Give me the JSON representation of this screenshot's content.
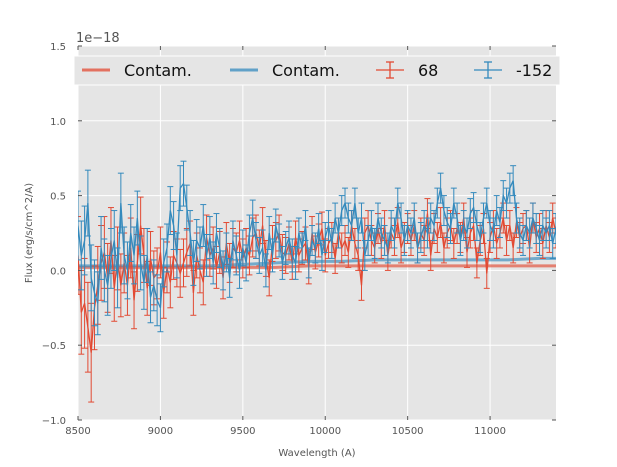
{
  "chart_data": {
    "type": "line",
    "title": "",
    "xlabel": "Wavelength (A)",
    "ylabel": "Flux (erg/s/cm^2/A)",
    "y_offset_label": "1e−18",
    "xlim": [
      8500,
      11400
    ],
    "ylim": [
      -1.0,
      1.5
    ],
    "xticks": [
      8500,
      9000,
      9500,
      10000,
      10500,
      11000
    ],
    "yticks": [
      -1.0,
      -0.5,
      0.0,
      0.5,
      1.0,
      1.5
    ],
    "xtick_labels": [
      "8500",
      "9000",
      "9500",
      "10000",
      "10500",
      "11000"
    ],
    "ytick_labels": [
      "−1.0",
      "−0.5",
      "0.0",
      "0.5",
      "1.0",
      "1.5"
    ],
    "grid": true,
    "legend_position": "top",
    "colors": {
      "red": "#e24a33",
      "blue": "#348abd",
      "background": "#e5e5e5",
      "grid": "#ffffff"
    },
    "legend": [
      {
        "label": "Contam.",
        "kind": "line",
        "color": "#e24a33"
      },
      {
        "label": "Contam.",
        "kind": "line",
        "color": "#348abd"
      },
      {
        "label": "68",
        "kind": "errorbar",
        "color": "#e24a33"
      },
      {
        "label": "-152",
        "kind": "errorbar",
        "color": "#348abd"
      }
    ],
    "x": [
      8500,
      8520,
      8540,
      8560,
      8580,
      8600,
      8620,
      8640,
      8660,
      8680,
      8700,
      8720,
      8740,
      8760,
      8780,
      8800,
      8820,
      8840,
      8860,
      8880,
      8900,
      8920,
      8940,
      8960,
      8980,
      9000,
      9020,
      9040,
      9060,
      9080,
      9100,
      9120,
      9140,
      9160,
      9180,
      9200,
      9220,
      9240,
      9260,
      9280,
      9300,
      9320,
      9340,
      9360,
      9380,
      9400,
      9420,
      9440,
      9460,
      9480,
      9500,
      9520,
      9540,
      9560,
      9580,
      9600,
      9620,
      9640,
      9660,
      9680,
      9700,
      9720,
      9740,
      9760,
      9780,
      9800,
      9820,
      9840,
      9860,
      9880,
      9900,
      9920,
      9940,
      9960,
      9980,
      10000,
      10020,
      10040,
      10060,
      10080,
      10100,
      10120,
      10140,
      10160,
      10180,
      10200,
      10220,
      10240,
      10260,
      10280,
      10300,
      10320,
      10340,
      10360,
      10380,
      10400,
      10420,
      10440,
      10460,
      10480,
      10500,
      10520,
      10540,
      10560,
      10580,
      10600,
      10620,
      10640,
      10660,
      10680,
      10700,
      10720,
      10740,
      10760,
      10780,
      10800,
      10820,
      10840,
      10860,
      10880,
      10900,
      10920,
      10940,
      10960,
      10980,
      11000,
      11020,
      11040,
      11060,
      11080,
      11100,
      11120,
      11140,
      11160,
      11180,
      11200,
      11220,
      11240,
      11260,
      11280,
      11300,
      11320,
      11340,
      11360,
      11380,
      11400
    ],
    "series": [
      {
        "name": "68",
        "kind": "errorbar",
        "color": "#e24a33",
        "y": [
          0.1,
          -0.28,
          -0.22,
          -0.38,
          -0.55,
          -0.25,
          -0.1,
          0.05,
          0.12,
          -0.05,
          0.2,
          -0.12,
          0.08,
          -0.1,
          0.05,
          -0.1,
          0.15,
          -0.2,
          0.05,
          0.3,
          0.1,
          -0.12,
          0.08,
          -0.05,
          -0.02,
          0.12,
          -0.15,
          0.02,
          -0.08,
          0.1,
          0.05,
          -0.02,
          0.05,
          0.12,
          0.18,
          -0.15,
          0.1,
          0.0,
          -0.08,
          0.22,
          0.1,
          0.15,
          0.02,
          0.12,
          -0.05,
          0.18,
          0.05,
          0.15,
          0.12,
          0.2,
          0.08,
          0.15,
          0.1,
          0.22,
          0.25,
          0.15,
          0.3,
          0.08,
          -0.05,
          0.18,
          0.2,
          0.25,
          0.12,
          0.1,
          0.18,
          0.05,
          0.22,
          0.1,
          0.15,
          0.18,
          0.02,
          0.25,
          0.12,
          0.2,
          0.28,
          0.1,
          0.18,
          0.22,
          0.08,
          0.25,
          0.15,
          0.2,
          0.12,
          0.3,
          0.18,
          0.1,
          -0.1,
          0.25,
          0.3,
          0.2,
          0.15,
          0.28,
          0.18,
          0.3,
          0.1,
          0.25,
          0.2,
          0.32,
          0.15,
          0.22,
          0.28,
          0.2,
          0.3,
          0.15,
          0.25,
          0.2,
          0.38,
          0.1,
          0.28,
          0.22,
          0.32,
          0.15,
          0.25,
          0.3,
          0.18,
          0.28,
          0.22,
          0.35,
          0.12,
          0.25,
          0.3,
          0.05,
          0.2,
          0.28,
          -0.02,
          0.22,
          0.3,
          0.18,
          0.25,
          0.35,
          0.2,
          0.3,
          0.15,
          0.32,
          0.22,
          0.28,
          0.3,
          0.15,
          0.35,
          0.22,
          0.28,
          0.18,
          0.3,
          0.22,
          0.35,
          0.25
        ],
        "err": [
          0.26,
          0.28,
          0.3,
          0.3,
          0.33,
          0.28,
          0.26,
          0.25,
          0.24,
          0.23,
          0.22,
          0.22,
          0.21,
          0.21,
          0.2,
          0.2,
          0.2,
          0.19,
          0.19,
          0.19,
          0.18,
          0.18,
          0.18,
          0.18,
          0.17,
          0.17,
          0.17,
          0.17,
          0.17,
          0.16,
          0.16,
          0.16,
          0.16,
          0.16,
          0.15,
          0.15,
          0.15,
          0.15,
          0.15,
          0.15,
          0.14,
          0.14,
          0.14,
          0.14,
          0.14,
          0.14,
          0.13,
          0.13,
          0.13,
          0.13,
          0.13,
          0.13,
          0.13,
          0.13,
          0.12,
          0.12,
          0.12,
          0.12,
          0.12,
          0.12,
          0.12,
          0.12,
          0.12,
          0.12,
          0.11,
          0.11,
          0.11,
          0.11,
          0.11,
          0.11,
          0.11,
          0.11,
          0.11,
          0.11,
          0.11,
          0.11,
          0.1,
          0.1,
          0.1,
          0.1,
          0.1,
          0.1,
          0.1,
          0.1,
          0.1,
          0.1,
          0.1,
          0.1,
          0.1,
          0.1,
          0.1,
          0.1,
          0.1,
          0.1,
          0.1,
          0.1,
          0.1,
          0.1,
          0.1,
          0.1,
          0.1,
          0.1,
          0.1,
          0.1,
          0.1,
          0.1,
          0.1,
          0.1,
          0.1,
          0.1,
          0.1,
          0.1,
          0.1,
          0.1,
          0.1,
          0.1,
          0.1,
          0.1,
          0.1,
          0.1,
          0.1,
          0.1,
          0.1,
          0.1,
          0.1,
          0.1,
          0.1,
          0.1,
          0.1,
          0.1,
          0.1,
          0.1,
          0.1,
          0.1,
          0.1,
          0.1,
          0.1,
          0.1,
          0.1,
          0.1,
          0.1,
          0.1,
          0.1,
          0.1,
          0.1,
          0.1
        ]
      },
      {
        "name": "-152",
        "kind": "errorbar",
        "color": "#348abd",
        "y": [
          0.3,
          0.1,
          0.2,
          0.45,
          -0.05,
          -0.15,
          -0.22,
          0.15,
          0.0,
          -0.1,
          0.08,
          0.2,
          -0.05,
          0.45,
          0.1,
          0.0,
          0.25,
          0.1,
          0.35,
          0.05,
          -0.08,
          0.1,
          -0.18,
          -0.1,
          -0.2,
          -0.25,
          0.05,
          0.15,
          0.4,
          0.3,
          0.1,
          0.55,
          0.58,
          0.42,
          0.25,
          0.05,
          0.2,
          0.15,
          0.3,
          0.1,
          0.22,
          0.05,
          0.25,
          0.15,
          0.0,
          0.12,
          -0.05,
          0.2,
          0.1,
          0.0,
          0.15,
          0.05,
          0.25,
          0.35,
          0.2,
          0.1,
          0.15,
          0.0,
          0.25,
          0.1,
          0.3,
          0.2,
          0.05,
          0.15,
          0.22,
          0.1,
          0.05,
          0.25,
          0.15,
          0.3,
          0.05,
          0.2,
          0.15,
          0.28,
          0.1,
          0.22,
          0.3,
          0.18,
          0.35,
          0.25,
          0.4,
          0.45,
          0.35,
          0.3,
          0.45,
          0.25,
          0.35,
          0.1,
          0.2,
          0.3,
          0.18,
          0.35,
          0.25,
          0.2,
          0.15,
          0.3,
          0.25,
          0.45,
          0.35,
          0.2,
          0.3,
          0.25,
          0.35,
          0.15,
          0.22,
          0.3,
          0.25,
          0.35,
          0.3,
          0.45,
          0.55,
          0.4,
          0.32,
          0.28,
          0.45,
          0.35,
          0.2,
          0.3,
          0.25,
          0.38,
          0.42,
          0.3,
          0.22,
          0.35,
          0.45,
          0.3,
          0.25,
          0.4,
          0.32,
          0.5,
          0.45,
          0.55,
          0.6,
          0.35,
          0.25,
          0.2,
          0.3,
          0.25,
          0.35,
          0.28,
          0.2,
          0.3,
          0.25,
          0.3,
          0.18,
          0.28
        ],
        "err": [
          0.23,
          0.23,
          0.23,
          0.22,
          0.22,
          0.22,
          0.21,
          0.21,
          0.21,
          0.2,
          0.2,
          0.2,
          0.2,
          0.2,
          0.19,
          0.19,
          0.19,
          0.19,
          0.18,
          0.18,
          0.18,
          0.18,
          0.17,
          0.17,
          0.17,
          0.16,
          0.16,
          0.16,
          0.16,
          0.16,
          0.15,
          0.15,
          0.15,
          0.15,
          0.15,
          0.15,
          0.14,
          0.14,
          0.14,
          0.14,
          0.14,
          0.14,
          0.13,
          0.13,
          0.13,
          0.13,
          0.13,
          0.13,
          0.13,
          0.12,
          0.12,
          0.12,
          0.12,
          0.12,
          0.12,
          0.12,
          0.12,
          0.11,
          0.11,
          0.11,
          0.11,
          0.11,
          0.11,
          0.11,
          0.11,
          0.11,
          0.11,
          0.1,
          0.1,
          0.1,
          0.1,
          0.1,
          0.1,
          0.1,
          0.1,
          0.1,
          0.1,
          0.1,
          0.1,
          0.1,
          0.1,
          0.1,
          0.1,
          0.1,
          0.1,
          0.1,
          0.1,
          0.1,
          0.1,
          0.1,
          0.1,
          0.1,
          0.1,
          0.1,
          0.1,
          0.1,
          0.1,
          0.1,
          0.1,
          0.1,
          0.1,
          0.1,
          0.1,
          0.1,
          0.1,
          0.1,
          0.1,
          0.1,
          0.1,
          0.1,
          0.1,
          0.1,
          0.1,
          0.1,
          0.1,
          0.1,
          0.1,
          0.1,
          0.1,
          0.1,
          0.1,
          0.1,
          0.1,
          0.1,
          0.1,
          0.1,
          0.1,
          0.1,
          0.1,
          0.1,
          0.1,
          0.1,
          0.1,
          0.1,
          0.1,
          0.1,
          0.1,
          0.1,
          0.1,
          0.1,
          0.1,
          0.1,
          0.1,
          0.1,
          0.1,
          0.1
        ]
      },
      {
        "name": "Contam.",
        "kind": "line",
        "color": "#e24a33",
        "x": [
          8500,
          8700,
          8900,
          9100,
          9300,
          9500,
          9700,
          9900,
          10100,
          10300,
          10500,
          10700,
          10900,
          11100,
          11300,
          11400
        ],
        "y": [
          0.02,
          0.02,
          0.02,
          0.02,
          0.02,
          0.02,
          0.02,
          0.03,
          0.03,
          0.03,
          0.03,
          0.03,
          0.03,
          0.03,
          0.03,
          0.03
        ]
      },
      {
        "name": "Contam.",
        "kind": "line",
        "color": "#348abd",
        "x": [
          8500,
          8700,
          8900,
          9100,
          9300,
          9500,
          9700,
          9900,
          10100,
          10300,
          10500,
          10700,
          10900,
          11100,
          11300,
          11400
        ],
        "y": [
          0.03,
          0.03,
          0.03,
          0.03,
          0.03,
          0.04,
          0.05,
          0.06,
          0.06,
          0.07,
          0.07,
          0.07,
          0.07,
          0.07,
          0.08,
          0.08
        ]
      }
    ]
  }
}
